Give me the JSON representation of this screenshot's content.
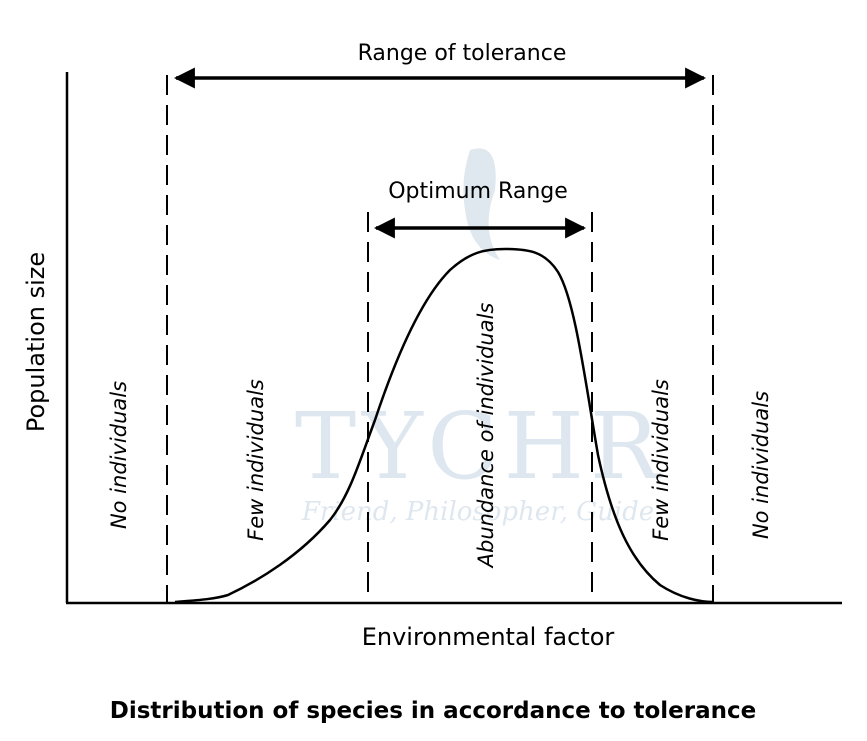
{
  "diagram": {
    "top_label": "Range of tolerance",
    "inner_label": "Optimum Range",
    "y_axis_label": "Population size",
    "x_axis_label": "Environmental factor",
    "zones": [
      "No individuals",
      "Few individuals",
      "Abundance of individuals",
      "Few individuals",
      "No individuals"
    ],
    "caption": "Distribution of species in accordance to tolerance",
    "watermark": {
      "title": "TYCHR",
      "tagline": "Friend, Philosopher, Guide",
      "color": "#b7cbdc"
    }
  }
}
